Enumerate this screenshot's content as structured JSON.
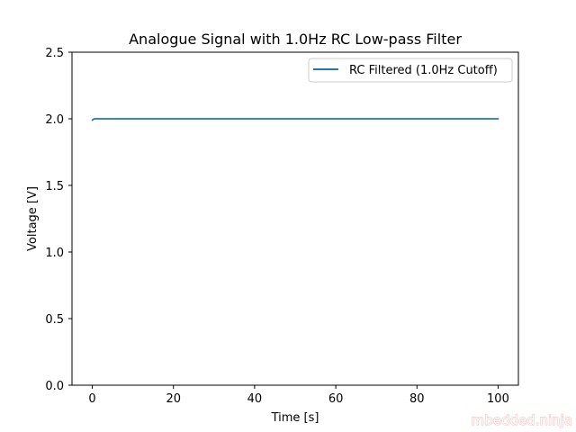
{
  "chart_data": {
    "type": "line",
    "title": "Analogue Signal with 1.0Hz RC Low-pass Filter",
    "xlabel": "Time [s]",
    "ylabel": "Voltage [V]",
    "xlim": [
      -5,
      105
    ],
    "ylim": [
      0,
      2.5
    ],
    "xticks": [
      0,
      20,
      40,
      60,
      80,
      100
    ],
    "yticks": [
      0.0,
      0.5,
      1.0,
      1.5,
      2.0,
      2.5
    ],
    "xtick_labels": [
      "0",
      "20",
      "40",
      "60",
      "80",
      "100"
    ],
    "ytick_labels": [
      "0.0",
      "0.5",
      "1.0",
      "1.5",
      "2.0",
      "2.5"
    ],
    "grid": false,
    "legend_position": "upper right",
    "series": [
      {
        "name": "RC Filtered (1.0Hz Cutoff)",
        "color": "#1f77b4",
        "x": [
          0,
          0.5,
          1,
          5,
          10,
          15,
          20,
          25,
          30,
          35,
          40,
          45,
          50,
          55,
          60,
          65,
          70,
          75,
          80,
          85,
          90,
          95,
          100
        ],
        "y": [
          1.99,
          2.0,
          2.0,
          2.0,
          2.0,
          2.0,
          2.0,
          2.0,
          2.0,
          2.0,
          2.0,
          2.0,
          2.0,
          2.0,
          2.0,
          2.0,
          2.0,
          2.0,
          2.0,
          2.0,
          2.0,
          2.0,
          2.0
        ]
      }
    ]
  },
  "watermark": "mbedded.ninja"
}
